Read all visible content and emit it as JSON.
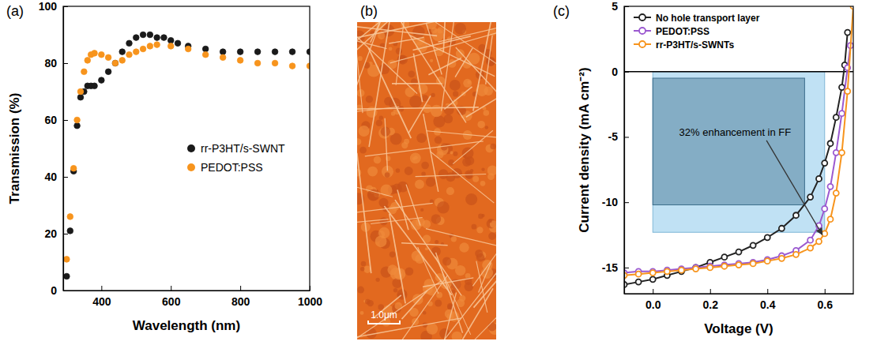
{
  "chart_data": [
    {
      "panel": "(a)",
      "type": "scatter",
      "x_label": "Wavelength (nm)",
      "y_label": "Transmission (%)",
      "xlim": [
        290,
        1000
      ],
      "ylim": [
        0,
        100
      ],
      "xticks": [
        400,
        600,
        800,
        1000
      ],
      "yticks": [
        0,
        20,
        40,
        60,
        80,
        100
      ],
      "grid": false,
      "legend": "right",
      "marker": "circle",
      "series": [
        {
          "name": "rr-P3HT/s-SWNT",
          "color": "#1a1a1a",
          "x": [
            300,
            310,
            320,
            330,
            340,
            350,
            360,
            370,
            380,
            400,
            420,
            440,
            460,
            480,
            500,
            520,
            540,
            560,
            580,
            600,
            620,
            650,
            700,
            750,
            800,
            850,
            900,
            950,
            1000
          ],
          "values": [
            5,
            21,
            42,
            58,
            68,
            70,
            72,
            72,
            72,
            74,
            77,
            80,
            84,
            87,
            89,
            90,
            90,
            89,
            89,
            88,
            87,
            86,
            85,
            84,
            84,
            84,
            84,
            84,
            84
          ]
        },
        {
          "name": "PEDOT:PSS",
          "color": "#f7941d",
          "x": [
            300,
            310,
            320,
            330,
            340,
            350,
            360,
            370,
            380,
            400,
            420,
            440,
            460,
            480,
            500,
            520,
            540,
            560,
            600,
            650,
            700,
            750,
            800,
            850,
            900,
            950,
            1000
          ],
          "values": [
            11,
            26,
            43,
            60,
            70,
            77,
            81,
            83,
            83.5,
            83,
            82,
            80,
            81,
            83,
            84,
            85,
            86,
            86.5,
            86,
            85,
            83,
            82,
            81,
            80,
            80,
            79,
            79
          ]
        }
      ]
    },
    {
      "panel": "(c)",
      "type": "line",
      "x_label": "Voltage (V)",
      "y_label": "Current density (mA cm⁻²)",
      "xlim": [
        -0.1,
        0.7
      ],
      "ylim": [
        -17,
        5
      ],
      "xticks": [
        {
          "value": 0,
          "label": "0.0"
        },
        0.2,
        0.4,
        0.6
      ],
      "yticks": [
        -15,
        -10,
        -5,
        0,
        5
      ],
      "grid": false,
      "legend": "upper left",
      "marker": "circle",
      "hlines": [
        0
      ],
      "regions": [
        {
          "x": [
            0,
            0.6
          ],
          "y": [
            -12.3,
            0
          ]
        },
        {
          "x": [
            0,
            0.53
          ],
          "y": [
            -10.2,
            -0.5
          ]
        }
      ],
      "annotation": "32% enhancement in FF",
      "series": [
        {
          "name": "No hole transport layer",
          "color": "#222222",
          "x": [
            -0.1,
            -0.05,
            0,
            0.05,
            0.1,
            0.15,
            0.2,
            0.25,
            0.3,
            0.35,
            0.4,
            0.45,
            0.5,
            0.55,
            0.58,
            0.6,
            0.62,
            0.64,
            0.66,
            0.67,
            0.68
          ],
          "values": [
            -16.3,
            -16.1,
            -15.9,
            -15.6,
            -15.3,
            -15.0,
            -14.6,
            -14.2,
            -13.8,
            -13.3,
            -12.7,
            -12.0,
            -11.0,
            -9.6,
            -8.2,
            -7.0,
            -5.5,
            -3.5,
            -1.2,
            0.5,
            3
          ]
        },
        {
          "name": "PEDOT:PSS",
          "color": "#9b59d0",
          "x": [
            -0.1,
            -0.05,
            0,
            0.05,
            0.1,
            0.15,
            0.2,
            0.25,
            0.3,
            0.35,
            0.4,
            0.45,
            0.5,
            0.55,
            0.58,
            0.6,
            0.62,
            0.64,
            0.66,
            0.68,
            0.69
          ],
          "values": [
            -15.4,
            -15.3,
            -15.3,
            -15.2,
            -15.1,
            -15.0,
            -14.9,
            -14.8,
            -14.7,
            -14.6,
            -14.4,
            -14.1,
            -13.7,
            -12.9,
            -11.8,
            -10.5,
            -8.8,
            -6.2,
            -3.2,
            0.3,
            2
          ]
        },
        {
          "name": "rr-P3HT/s-SWNTs",
          "color": "#f7941d",
          "x": [
            -0.1,
            -0.05,
            0,
            0.05,
            0.1,
            0.15,
            0.2,
            0.25,
            0.3,
            0.35,
            0.4,
            0.45,
            0.5,
            0.55,
            0.58,
            0.6,
            0.62,
            0.64,
            0.66,
            0.68,
            0.7
          ],
          "values": [
            -15.6,
            -15.5,
            -15.4,
            -15.3,
            -15.2,
            -15.1,
            -15.0,
            -14.9,
            -14.8,
            -14.7,
            -14.5,
            -14.3,
            -14.0,
            -13.5,
            -13.0,
            -12.4,
            -11.3,
            -9.3,
            -6.2,
            -1.5,
            5
          ]
        }
      ]
    }
  ],
  "image": {
    "label": "(b)",
    "scale_bar": "1.0μm"
  }
}
